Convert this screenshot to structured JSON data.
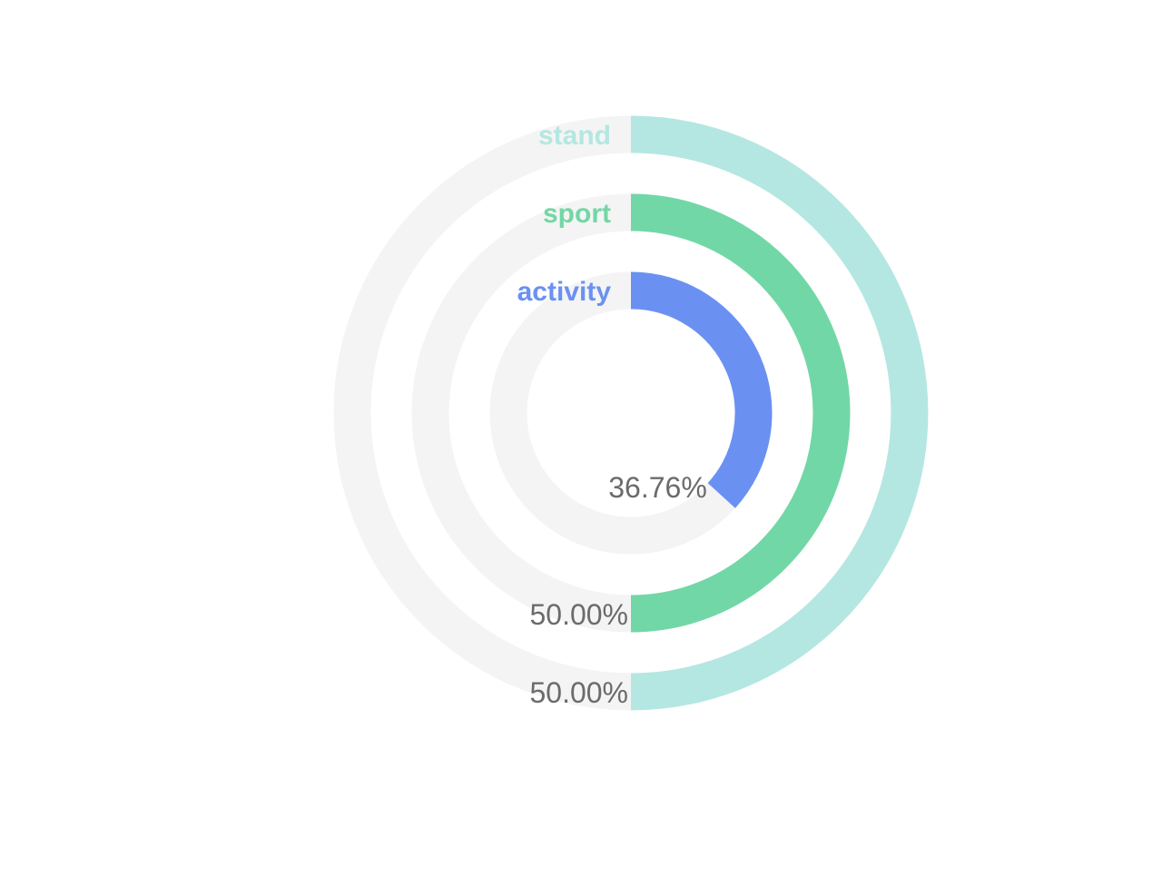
{
  "chart_data": {
    "type": "radial-bar",
    "title": "",
    "unit": "%",
    "max": 100,
    "track_color": "#f4f4f4",
    "label_color": "#6b6b6b",
    "series": [
      {
        "name": "activity",
        "value": 36.76,
        "value_label": "36.76%",
        "color": "#6a91f2"
      },
      {
        "name": "sport",
        "value": 50.0,
        "value_label": "50.00%",
        "color": "#72d7a6"
      },
      {
        "name": "stand",
        "value": 50.0,
        "value_label": "50.00%",
        "color": "#b4e7e1"
      }
    ]
  }
}
